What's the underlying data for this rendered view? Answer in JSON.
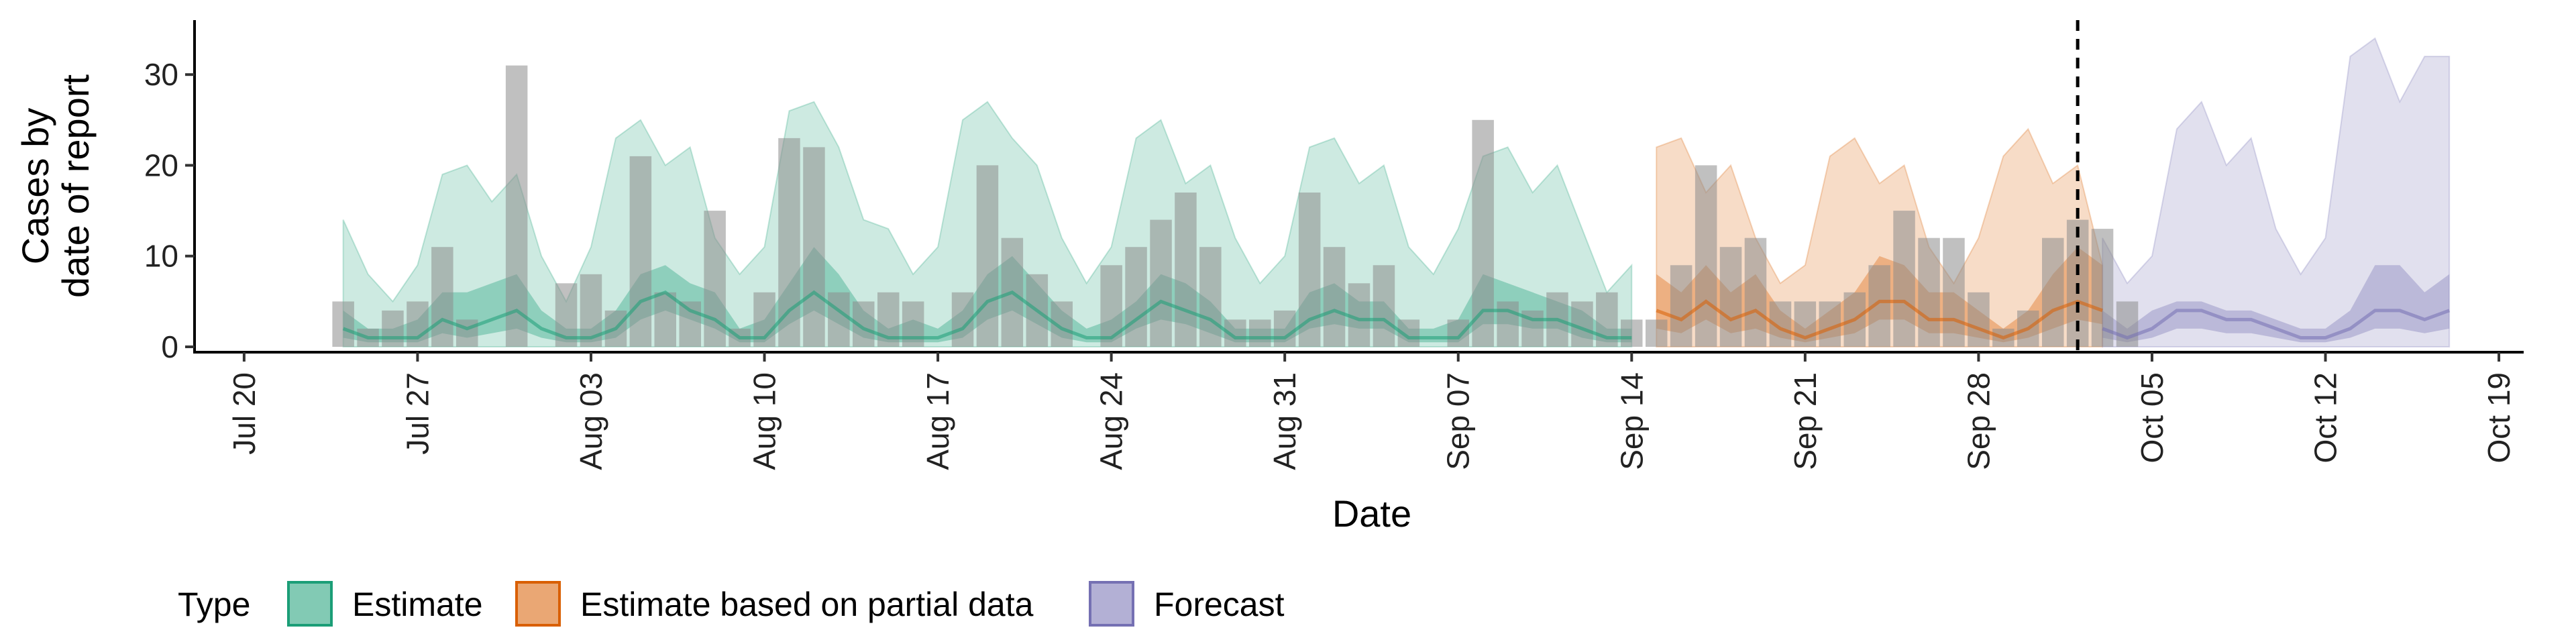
{
  "chart_data": {
    "type": "bar",
    "xlabel": "Date",
    "ylabel": [
      "Cases by",
      "date of report"
    ],
    "ylim": [
      0,
      36
    ],
    "yticks": [
      0,
      10,
      20,
      30
    ],
    "xlim": [
      "2020-07-18",
      "2020-10-20"
    ],
    "xticks": [
      {
        "date": "2020-07-20",
        "label": "Jul 20"
      },
      {
        "date": "2020-07-27",
        "label": "Jul 27"
      },
      {
        "date": "2020-08-03",
        "label": "Aug 03"
      },
      {
        "date": "2020-08-10",
        "label": "Aug 10"
      },
      {
        "date": "2020-08-17",
        "label": "Aug 17"
      },
      {
        "date": "2020-08-24",
        "label": "Aug 24"
      },
      {
        "date": "2020-08-31",
        "label": "Aug 31"
      },
      {
        "date": "2020-09-07",
        "label": "Sep 07"
      },
      {
        "date": "2020-09-14",
        "label": "Sep 14"
      },
      {
        "date": "2020-09-21",
        "label": "Sep 21"
      },
      {
        "date": "2020-09-28",
        "label": "Sep 28"
      },
      {
        "date": "2020-10-05",
        "label": "Oct 05"
      },
      {
        "date": "2020-10-12",
        "label": "Oct 12"
      },
      {
        "date": "2020-10-19",
        "label": "Oct 19"
      }
    ],
    "reported_cases": {
      "start_date": "2020-07-24",
      "values": [
        5,
        2,
        4,
        5,
        11,
        3,
        0,
        31,
        0,
        7,
        8,
        4,
        21,
        6,
        5,
        15,
        2,
        6,
        23,
        22,
        6,
        5,
        6,
        5,
        0,
        6,
        20,
        12,
        8,
        5,
        0,
        9,
        11,
        14,
        17,
        11,
        3,
        3,
        4,
        17,
        11,
        7,
        9,
        3,
        0,
        3,
        25,
        5,
        4,
        6,
        5,
        6,
        3,
        3,
        9,
        20,
        11,
        12,
        5,
        5,
        5,
        6,
        9,
        15,
        12,
        12,
        6,
        2,
        4,
        12,
        14,
        13,
        5
      ]
    },
    "series": [
      {
        "name": "Estimate",
        "color": "#1b9e77",
        "start_date": "2020-07-24",
        "median": [
          2,
          1,
          1,
          1,
          3,
          2,
          3,
          4,
          2,
          1,
          1,
          2,
          5,
          6,
          4,
          3,
          1,
          1,
          4,
          6,
          4,
          2,
          1,
          1,
          1,
          2,
          5,
          6,
          4,
          2,
          1,
          1,
          3,
          5,
          4,
          3,
          1,
          1,
          1,
          3,
          4,
          3,
          3,
          1,
          1,
          1,
          4,
          4,
          3,
          3,
          2,
          1,
          1
        ],
        "lower50": [
          1,
          0.5,
          0.5,
          0.5,
          1.5,
          1,
          1.5,
          2,
          1,
          0.5,
          0.5,
          1,
          3,
          4,
          3,
          2,
          0.5,
          0.5,
          2.5,
          4,
          2.5,
          1,
          0.5,
          0.5,
          0.5,
          1,
          3,
          4,
          2.5,
          1,
          0.5,
          0.5,
          2,
          3,
          2.5,
          1.5,
          0.5,
          0.5,
          0.5,
          2,
          2.5,
          2,
          2,
          0.5,
          0.5,
          0.5,
          2.5,
          2.5,
          2,
          2,
          1,
          0.5,
          0.5
        ],
        "upper50": [
          4,
          2,
          2,
          3,
          6,
          6,
          7,
          8,
          4,
          2,
          2,
          4,
          8,
          9,
          7,
          6,
          2,
          3,
          7,
          11,
          8,
          4,
          2,
          3,
          2,
          4,
          8,
          10,
          7,
          4,
          2,
          3,
          5,
          8,
          7,
          5,
          2,
          2,
          2,
          6,
          7,
          5,
          5,
          2,
          2,
          3,
          8,
          7,
          6,
          5,
          4,
          2,
          2
        ],
        "lower90": [
          0,
          0,
          0,
          0,
          0,
          0,
          0,
          0,
          0,
          0,
          0,
          0,
          0,
          0,
          0,
          0,
          0,
          0,
          0,
          0,
          0,
          0,
          0,
          0,
          0,
          0,
          0,
          0,
          0,
          0,
          0,
          0,
          0,
          0,
          0,
          0,
          0,
          0,
          0,
          0,
          0,
          0,
          0,
          0,
          0,
          0,
          0,
          0,
          0,
          0,
          0,
          0,
          0
        ],
        "upper90": [
          14,
          8,
          5,
          9,
          19,
          20,
          16,
          19,
          10,
          5,
          11,
          23,
          25,
          20,
          22,
          12,
          8,
          11,
          26,
          27,
          22,
          14,
          13,
          8,
          11,
          25,
          27,
          23,
          20,
          12,
          7,
          11,
          23,
          25,
          18,
          20,
          12,
          7,
          10,
          22,
          23,
          18,
          20,
          11,
          8,
          13,
          21,
          22,
          17,
          20,
          13,
          6,
          9
        ]
      },
      {
        "name": "Estimate based on partial data",
        "color": "#d95f02",
        "start_date": "2020-09-15",
        "median": [
          4,
          3,
          5,
          3,
          4,
          2,
          1,
          2,
          3,
          5,
          5,
          3,
          3,
          2,
          1,
          2,
          4,
          5,
          4
        ],
        "lower50": [
          2,
          1.5,
          3,
          1.5,
          2,
          1,
          0.5,
          1,
          1.5,
          3,
          3,
          1.5,
          1.5,
          1,
          0.5,
          1,
          2,
          3,
          2.5
        ],
        "upper50": [
          8,
          6,
          9,
          6,
          8,
          4,
          2,
          4,
          6,
          10,
          9,
          6,
          6,
          4,
          2,
          4,
          8,
          11,
          9
        ],
        "lower90": [
          0,
          0,
          0,
          0,
          0,
          0,
          0,
          0,
          0,
          0,
          0,
          0,
          0,
          0,
          0,
          0,
          0,
          0,
          0
        ],
        "upper90": [
          22,
          23,
          17,
          20,
          12,
          7,
          9,
          21,
          23,
          18,
          20,
          11,
          7,
          12,
          21,
          24,
          18,
          20,
          9
        ]
      },
      {
        "name": "Forecast",
        "color": "#7570b3",
        "start_date": "2020-10-03",
        "median": [
          2,
          1,
          2,
          4,
          4,
          3,
          3,
          2,
          1,
          1,
          2,
          4,
          4,
          3,
          4
        ],
        "lower50": [
          1,
          0.5,
          1,
          2,
          2,
          1.5,
          1.5,
          1,
          0.5,
          0.5,
          1,
          2,
          2,
          1.5,
          2
        ],
        "upper50": [
          4,
          2,
          4,
          5,
          5,
          4,
          4,
          3,
          2,
          2,
          4,
          9,
          9,
          6,
          8
        ],
        "lower90": [
          0,
          0,
          0,
          0,
          0,
          0,
          0,
          0,
          0,
          0,
          0,
          0,
          0,
          0,
          0
        ],
        "upper90": [
          12,
          7,
          10,
          24,
          27,
          20,
          23,
          13,
          8,
          12,
          32,
          34,
          27,
          32,
          32
        ]
      }
    ],
    "forecast_divider_date": "2020-10-02",
    "legend": {
      "title": "Type",
      "position": "bottom",
      "items": [
        "Estimate",
        "Estimate based on partial data",
        "Forecast"
      ]
    },
    "grid": false
  }
}
